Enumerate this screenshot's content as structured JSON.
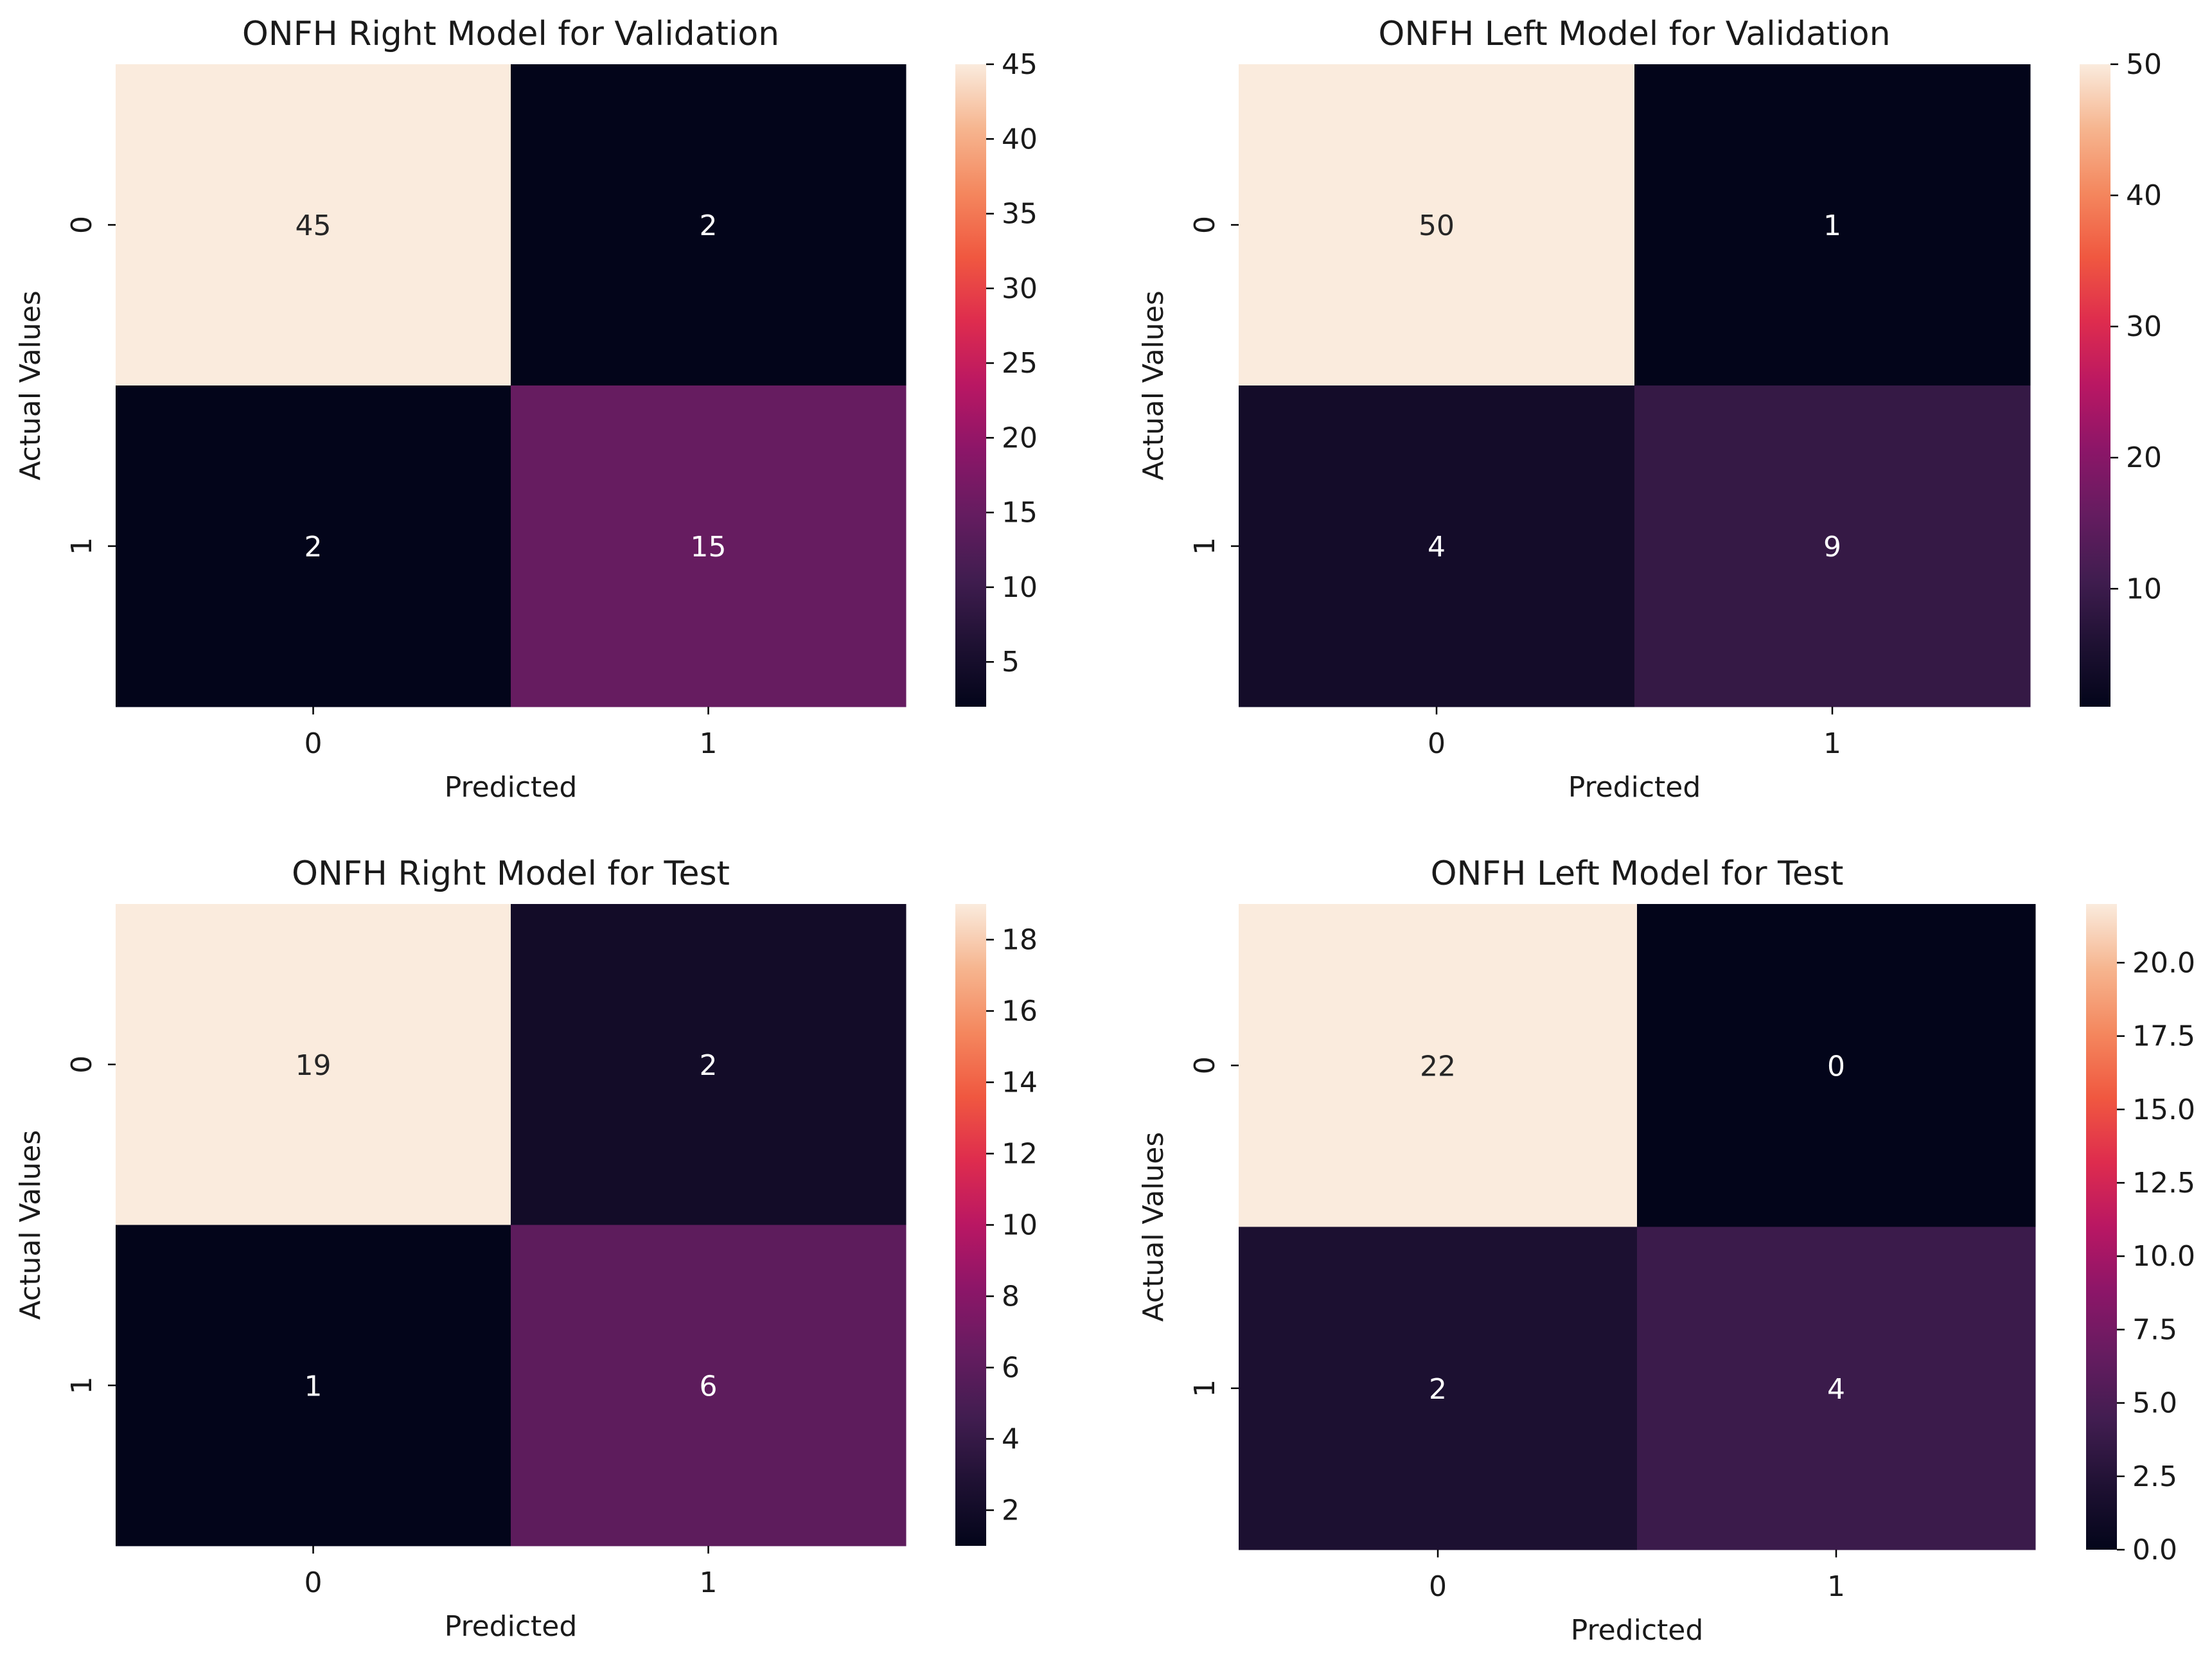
{
  "chart_data": [
    {
      "type": "heatmap",
      "title": "ONFH Right Model for Validation",
      "xlabel": "Predicted",
      "ylabel": "Actual Values",
      "x_tick_labels": [
        "0",
        "1"
      ],
      "y_tick_labels": [
        "0",
        "1"
      ],
      "matrix": [
        [
          45,
          2
        ],
        [
          2,
          15
        ]
      ],
      "colorbar": {
        "vmin": 2,
        "vmax": 45,
        "ticks": [
          5,
          10,
          15,
          20,
          25,
          30,
          35,
          40,
          45
        ],
        "tick_labels": [
          "5",
          "10",
          "15",
          "20",
          "25",
          "30",
          "35",
          "40",
          "45"
        ]
      },
      "colormap": "rocket"
    },
    {
      "type": "heatmap",
      "title": "ONFH Left Model for Validation",
      "xlabel": "Predicted",
      "ylabel": "Actual Values",
      "x_tick_labels": [
        "0",
        "1"
      ],
      "y_tick_labels": [
        "0",
        "1"
      ],
      "matrix": [
        [
          50,
          1
        ],
        [
          4,
          9
        ]
      ],
      "colorbar": {
        "vmin": 1,
        "vmax": 50,
        "ticks": [
          10,
          20,
          30,
          40,
          50
        ],
        "tick_labels": [
          "10",
          "20",
          "30",
          "40",
          "50"
        ]
      },
      "colormap": "rocket"
    },
    {
      "type": "heatmap",
      "title": "ONFH Right Model for Test",
      "xlabel": "Predicted",
      "ylabel": "Actual Values",
      "x_tick_labels": [
        "0",
        "1"
      ],
      "y_tick_labels": [
        "0",
        "1"
      ],
      "matrix": [
        [
          19,
          2
        ],
        [
          1,
          6
        ]
      ],
      "colorbar": {
        "vmin": 1,
        "vmax": 19,
        "ticks": [
          2,
          4,
          6,
          8,
          10,
          12,
          14,
          16,
          18
        ],
        "tick_labels": [
          "2",
          "4",
          "6",
          "8",
          "10",
          "12",
          "14",
          "16",
          "18"
        ]
      },
      "colormap": "rocket"
    },
    {
      "type": "heatmap",
      "title": "ONFH Left Model for Test",
      "xlabel": "Predicted",
      "ylabel": "Actual Values",
      "x_tick_labels": [
        "0",
        "1"
      ],
      "y_tick_labels": [
        "0",
        "1"
      ],
      "matrix": [
        [
          22,
          0
        ],
        [
          2,
          4
        ]
      ],
      "colorbar": {
        "vmin": 0,
        "vmax": 22,
        "ticks": [
          0,
          2.5,
          5,
          7.5,
          10,
          12.5,
          15,
          17.5,
          20
        ],
        "tick_labels": [
          "0.0",
          "2.5",
          "5.0",
          "7.5",
          "10.0",
          "12.5",
          "15.0",
          "17.5",
          "20.0"
        ]
      },
      "colormap": "rocket"
    }
  ]
}
